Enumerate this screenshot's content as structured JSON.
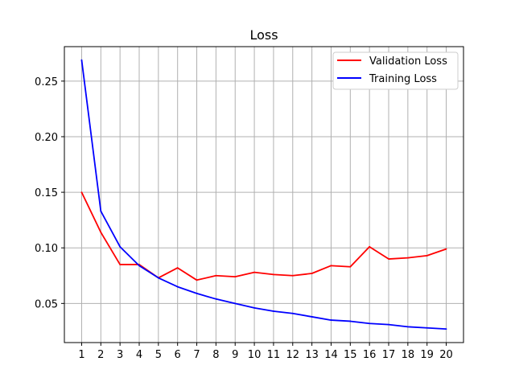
{
  "chart_data": {
    "type": "line",
    "title": "Loss",
    "xlabel": "",
    "ylabel": "",
    "x": [
      1,
      2,
      3,
      4,
      5,
      6,
      7,
      8,
      9,
      10,
      11,
      12,
      13,
      14,
      15,
      16,
      17,
      18,
      19,
      20
    ],
    "xlim": [
      0.1,
      20.9
    ],
    "ylim": [
      0.0148,
      0.281
    ],
    "x_ticks": [
      "1",
      "2",
      "3",
      "4",
      "5",
      "6",
      "7",
      "8",
      "9",
      "10",
      "11",
      "12",
      "13",
      "14",
      "15",
      "16",
      "17",
      "18",
      "19",
      "20"
    ],
    "y_ticks": [
      0.05,
      0.1,
      0.15,
      0.2,
      0.25
    ],
    "y_tick_labels": [
      "0.05",
      "0.10",
      "0.15",
      "0.20",
      "0.25"
    ],
    "grid": true,
    "legend_position": "top-right",
    "series": [
      {
        "name": "Validation Loss",
        "color": "#ff0000",
        "values": [
          0.15,
          0.114,
          0.085,
          0.085,
          0.073,
          0.082,
          0.071,
          0.075,
          0.074,
          0.078,
          0.076,
          0.075,
          0.077,
          0.084,
          0.083,
          0.101,
          0.09,
          0.091,
          0.093,
          0.099
        ]
      },
      {
        "name": "Training Loss",
        "color": "#0000ff",
        "values": [
          0.269,
          0.133,
          0.101,
          0.084,
          0.073,
          0.065,
          0.059,
          0.054,
          0.05,
          0.046,
          0.043,
          0.041,
          0.038,
          0.035,
          0.034,
          0.032,
          0.031,
          0.029,
          0.028,
          0.027
        ]
      }
    ]
  }
}
